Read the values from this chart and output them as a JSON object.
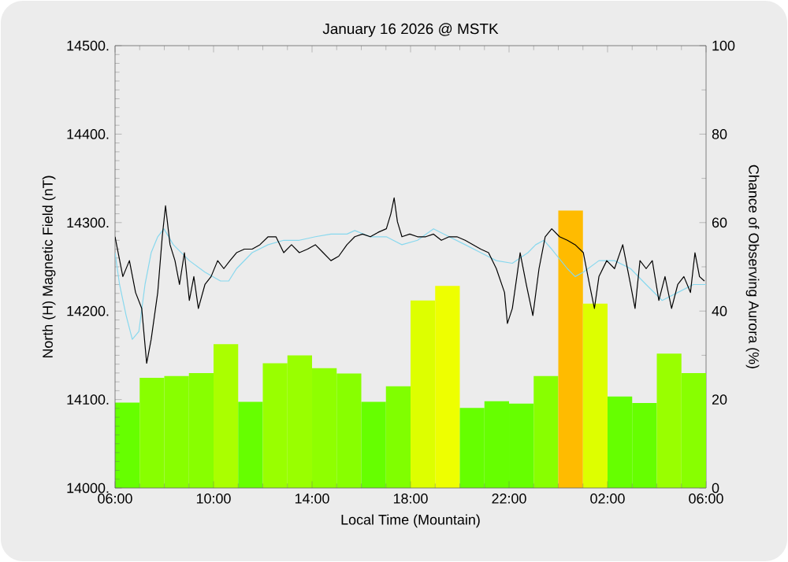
{
  "chart_data": {
    "type": "line",
    "title": "January 16 2026 @ MSTK",
    "xlabel": "Local Time (Mountain)",
    "ylabel": "North (H) Magnetic Field (nT)",
    "y2label": "Chance of Observing Aurora (%)",
    "xlim": [
      "2026-01-16T06:00",
      "2026-01-17T06:00"
    ],
    "xticks": [
      {
        "value": "2026-01-16T06:00",
        "label": "06:00"
      },
      {
        "value": "2026-01-16T10:00",
        "label": "10:00"
      },
      {
        "value": "2026-01-16T14:00",
        "label": "14:00"
      },
      {
        "value": "2026-01-16T18:00",
        "label": "18:00"
      },
      {
        "value": "2026-01-16T22:00",
        "label": "22:00"
      },
      {
        "value": "2026-01-17T02:00",
        "label": "02:00"
      },
      {
        "value": "2026-01-17T06:00",
        "label": "06:00"
      }
    ],
    "ylim": [
      14000,
      14500
    ],
    "yticks": [
      {
        "value": 14000,
        "label": "14000."
      },
      {
        "value": 14100,
        "label": "14100."
      },
      {
        "value": 14200,
        "label": "14200."
      },
      {
        "value": 14300,
        "label": "14300."
      },
      {
        "value": 14400,
        "label": "14400."
      },
      {
        "value": 14500,
        "label": "14500."
      }
    ],
    "y2lim": [
      0,
      100
    ],
    "y2ticks": [
      0,
      20,
      40,
      60,
      80,
      100
    ],
    "grid": false,
    "legend": false,
    "series": [
      {
        "type": "bar",
        "axis": "y2",
        "x": [
          "2026-01-16T06:30",
          "2026-01-16T07:30",
          "2026-01-16T08:30",
          "2026-01-16T09:30",
          "2026-01-16T10:30",
          "2026-01-16T11:30",
          "2026-01-16T12:30",
          "2026-01-16T13:30",
          "2026-01-16T14:30",
          "2026-01-16T15:30",
          "2026-01-16T16:30",
          "2026-01-16T17:30",
          "2026-01-16T18:30",
          "2026-01-16T19:30",
          "2026-01-16T20:30",
          "2026-01-16T21:30",
          "2026-01-16T22:30",
          "2026-01-16T23:30",
          "2026-01-17T00:30",
          "2026-01-17T01:30",
          "2026-01-17T02:30",
          "2026-01-17T03:30",
          "2026-01-17T04:30",
          "2026-01-17T05:30"
        ],
        "values": [
          19.3,
          24.9,
          25.3,
          26,
          32.5,
          19.5,
          28.2,
          30,
          27.1,
          25.9,
          19.5,
          23,
          42.4,
          45.7,
          18.1,
          19.6,
          19.1,
          25.3,
          62.7,
          41.7,
          20.7,
          19.2,
          30.4,
          26
        ],
        "colors": [
          "#66ff00",
          "#88ff00",
          "#88ff00",
          "#88ff00",
          "#aaff00",
          "#66ff00",
          "#99ff00",
          "#99ff00",
          "#8fff00",
          "#88ff00",
          "#66ff00",
          "#80ff00",
          "#ddff00",
          "#eeff00",
          "#66ff00",
          "#66ff00",
          "#66ff00",
          "#88ff00",
          "#ffbb00",
          "#ddff00",
          "#66ff00",
          "#66ff00",
          "#99ff00",
          "#88ff00"
        ]
      },
      {
        "axis": "y",
        "color": "#88d8ee",
        "x": [
          "2026-01-16T06:00",
          "2026-01-16T06:11",
          "2026-01-16T06:27",
          "2026-01-16T06:42",
          "2026-01-16T06:58",
          "2026-01-16T07:13",
          "2026-01-16T07:28",
          "2026-01-16T07:44",
          "2026-01-16T07:59",
          "2026-01-16T08:22",
          "2026-01-16T09:01",
          "2026-01-16T09:39",
          "2026-01-16T10:17",
          "2026-01-16T10:37",
          "2026-01-16T10:56",
          "2026-01-16T11:34",
          "2026-01-16T12:13",
          "2026-01-16T12:51",
          "2026-01-16T13:29",
          "2026-01-16T14:08",
          "2026-01-16T14:46",
          "2026-01-16T15:25",
          "2026-01-16T15:44",
          "2026-01-16T16:22",
          "2026-01-16T17:01",
          "2026-01-16T17:39",
          "2026-01-16T18:17",
          "2026-01-16T18:56",
          "2026-01-16T19:34",
          "2026-01-16T20:13",
          "2026-01-16T20:51",
          "2026-01-16T21:29",
          "2026-01-16T22:08",
          "2026-01-16T22:46",
          "2026-01-16T23:05",
          "2026-01-16T23:25",
          "2026-01-16T23:44",
          "2026-01-17T00:22",
          "2026-01-17T00:41",
          "2026-01-17T01:01",
          "2026-01-17T01:39",
          "2026-01-17T02:17",
          "2026-01-17T02:56",
          "2026-01-17T03:34",
          "2026-01-17T04:13",
          "2026-01-17T04:51",
          "2026-01-17T05:29",
          "2026-01-17T06:00"
        ],
        "values": [
          14266,
          14230,
          14195,
          14168,
          14177,
          14230,
          14266,
          14284,
          14293,
          14275,
          14257,
          14244,
          14234,
          14234,
          14248,
          14266,
          14275,
          14280,
          14280,
          14284,
          14287,
          14287,
          14291,
          14284,
          14284,
          14275,
          14280,
          14293,
          14284,
          14275,
          14266,
          14257,
          14254,
          14266,
          14275,
          14280,
          14270,
          14248,
          14239,
          14244,
          14257,
          14257,
          14248,
          14230,
          14212,
          14221,
          14230,
          14230
        ]
      },
      {
        "axis": "y",
        "color": "#000000",
        "x": [
          "2026-01-16T06:00",
          "2026-01-16T06:19",
          "2026-01-16T06:35",
          "2026-01-16T06:50",
          "2026-01-16T07:05",
          "2026-01-16T07:17",
          "2026-01-16T07:28",
          "2026-01-16T07:44",
          "2026-01-16T07:55",
          "2026-01-16T08:03",
          "2026-01-16T08:14",
          "2026-01-16T08:26",
          "2026-01-16T08:37",
          "2026-01-16T08:49",
          "2026-01-16T09:01",
          "2026-01-16T09:12",
          "2026-01-16T09:23",
          "2026-01-16T09:39",
          "2026-01-16T09:54",
          "2026-01-16T10:10",
          "2026-01-16T10:25",
          "2026-01-16T10:40",
          "2026-01-16T10:56",
          "2026-01-16T11:15",
          "2026-01-16T11:34",
          "2026-01-16T11:53",
          "2026-01-16T12:13",
          "2026-01-16T12:32",
          "2026-01-16T12:51",
          "2026-01-16T13:10",
          "2026-01-16T13:29",
          "2026-01-16T13:49",
          "2026-01-16T14:08",
          "2026-01-16T14:27",
          "2026-01-16T14:46",
          "2026-01-16T15:05",
          "2026-01-16T15:25",
          "2026-01-16T15:44",
          "2026-01-16T16:03",
          "2026-01-16T16:22",
          "2026-01-16T16:41",
          "2026-01-16T17:01",
          "2026-01-16T17:12",
          "2026-01-16T17:20",
          "2026-01-16T17:28",
          "2026-01-16T17:39",
          "2026-01-16T17:58",
          "2026-01-16T18:17",
          "2026-01-16T18:37",
          "2026-01-16T18:56",
          "2026-01-16T19:15",
          "2026-01-16T19:34",
          "2026-01-16T19:53",
          "2026-01-16T20:13",
          "2026-01-16T20:32",
          "2026-01-16T20:51",
          "2026-01-16T21:10",
          "2026-01-16T21:29",
          "2026-01-16T21:49",
          "2026-01-16T21:56",
          "2026-01-16T22:08",
          "2026-01-16T22:19",
          "2026-01-16T22:27",
          "2026-01-16T22:42",
          "2026-01-16T22:58",
          "2026-01-16T23:13",
          "2026-01-16T23:28",
          "2026-01-16T23:44",
          "2026-01-17T00:03",
          "2026-01-17T00:22",
          "2026-01-17T00:41",
          "2026-01-17T01:01",
          "2026-01-17T01:16",
          "2026-01-17T01:28",
          "2026-01-17T01:39",
          "2026-01-17T01:58",
          "2026-01-17T02:17",
          "2026-01-17T02:37",
          "2026-01-17T02:56",
          "2026-01-17T03:07",
          "2026-01-17T03:19",
          "2026-01-17T03:34",
          "2026-01-17T03:49",
          "2026-01-17T04:05",
          "2026-01-17T04:20",
          "2026-01-17T04:36",
          "2026-01-17T04:51",
          "2026-01-17T05:06",
          "2026-01-17T05:22",
          "2026-01-17T05:33",
          "2026-01-17T05:44",
          "2026-01-17T05:56"
        ],
        "values": [
          14284,
          14239,
          14257,
          14221,
          14203,
          14141,
          14168,
          14221,
          14284,
          14319,
          14275,
          14257,
          14230,
          14266,
          14212,
          14239,
          14203,
          14230,
          14239,
          14257,
          14248,
          14257,
          14266,
          14270,
          14270,
          14275,
          14284,
          14284,
          14266,
          14275,
          14266,
          14270,
          14275,
          14266,
          14257,
          14262,
          14275,
          14284,
          14287,
          14284,
          14289,
          14293,
          14310,
          14328,
          14301,
          14284,
          14287,
          14284,
          14284,
          14287,
          14280,
          14284,
          14284,
          14280,
          14275,
          14270,
          14266,
          14248,
          14221,
          14186,
          14203,
          14239,
          14266,
          14230,
          14195,
          14248,
          14284,
          14293,
          14284,
          14280,
          14275,
          14266,
          14230,
          14203,
          14239,
          14257,
          14248,
          14275,
          14230,
          14203,
          14257,
          14248,
          14257,
          14212,
          14239,
          14203,
          14230,
          14239,
          14221,
          14266,
          14239,
          14234
        ]
      }
    ]
  }
}
